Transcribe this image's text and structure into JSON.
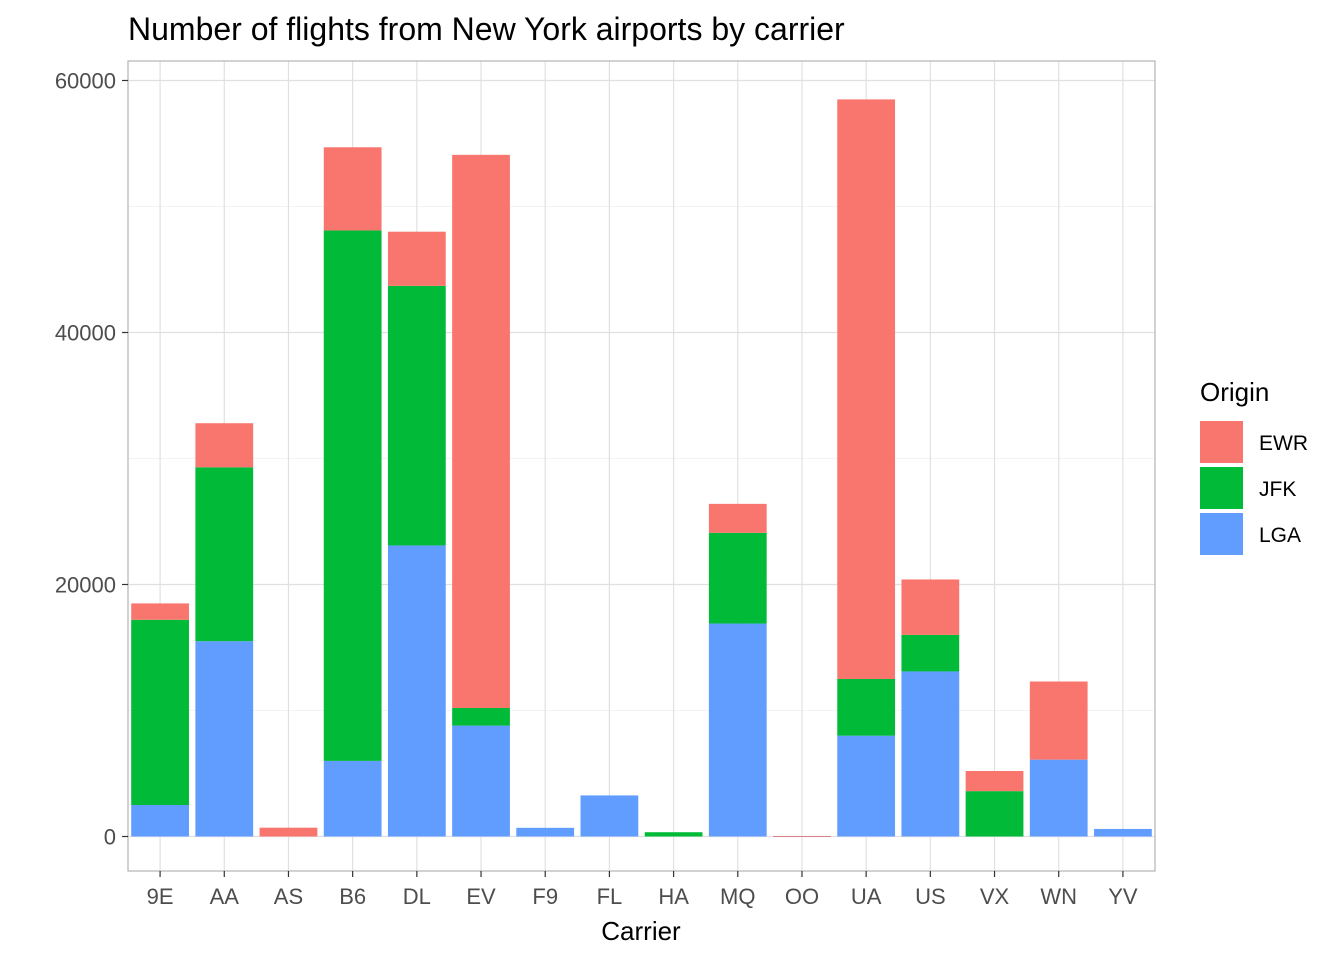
{
  "chart_data": {
    "type": "bar",
    "stacked": true,
    "title": "Number of flights from New York airports by carrier",
    "xlabel": "Carrier",
    "ylabel": "",
    "ylim": [
      0,
      62000
    ],
    "yticks": [
      0,
      20000,
      40000,
      60000
    ],
    "ytick_labels": [
      "0",
      "20000",
      "40000",
      "60000"
    ],
    "grid": true,
    "legend_title": "Origin",
    "legend_position": "right",
    "categories": [
      "9E",
      "AA",
      "AS",
      "B6",
      "DL",
      "EV",
      "F9",
      "FL",
      "HA",
      "MQ",
      "OO",
      "UA",
      "US",
      "VX",
      "WN",
      "YV"
    ],
    "series": [
      {
        "name": "EWR",
        "color": "#F8766D",
        "values": [
          1300,
          3500,
          700,
          6600,
          4300,
          43900,
          0,
          0,
          0,
          2300,
          6,
          46000,
          4400,
          1600,
          6200,
          0
        ]
      },
      {
        "name": "JFK",
        "color": "#00BA38",
        "values": [
          14700,
          13800,
          0,
          42100,
          20600,
          1400,
          0,
          0,
          340,
          7200,
          0,
          4500,
          2900,
          3600,
          0,
          0
        ]
      },
      {
        "name": "LGA",
        "color": "#619CFF",
        "values": [
          2500,
          15500,
          0,
          6000,
          23100,
          8800,
          690,
          3260,
          0,
          16900,
          26,
          8000,
          13100,
          0,
          6100,
          600
        ]
      }
    ],
    "stack_order_bottom_to_top": [
      "LGA",
      "JFK",
      "EWR"
    ]
  }
}
